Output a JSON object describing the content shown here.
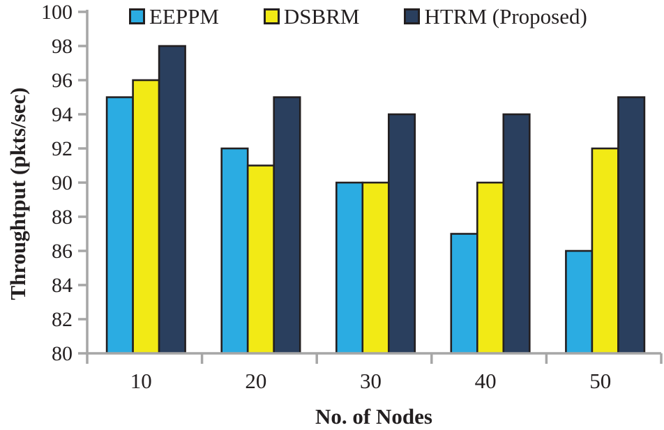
{
  "chart_data": {
    "type": "bar",
    "title": "",
    "xlabel": "No. of Nodes",
    "ylabel": "Throughtput (pkts/sec)",
    "categories": [
      "10",
      "20",
      "30",
      "40",
      "50"
    ],
    "series": [
      {
        "name": "EEPPM",
        "color": "#2BACE2",
        "values": [
          95,
          92,
          90,
          87,
          86
        ]
      },
      {
        "name": "DSBRM",
        "color": "#F2EA15",
        "values": [
          96,
          91,
          90,
          90,
          92
        ]
      },
      {
        "name": "HTRM (Proposed)",
        "color": "#2A3F5E",
        "values": [
          98,
          95,
          94,
          94,
          95
        ]
      }
    ],
    "ylim": [
      80,
      100
    ],
    "ytick_step": 2,
    "yticks": [
      80,
      82,
      84,
      86,
      88,
      90,
      92,
      94,
      96,
      98,
      100
    ],
    "legend_position": "top",
    "grid": false,
    "axis_color": "#A6A6A6",
    "bar_outline_color": "#231F20",
    "text_color": "#231F20"
  }
}
